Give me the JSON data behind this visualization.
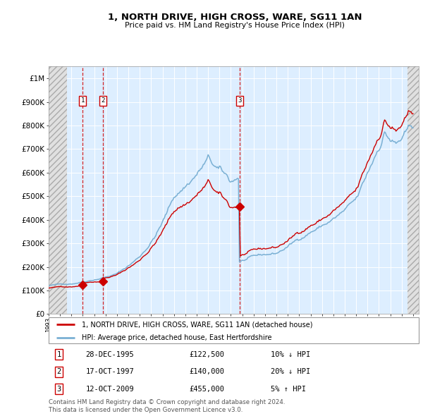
{
  "title": "1, NORTH DRIVE, HIGH CROSS, WARE, SG11 1AN",
  "subtitle": "Price paid vs. HM Land Registry's House Price Index (HPI)",
  "legend_line1": "1, NORTH DRIVE, HIGH CROSS, WARE, SG11 1AN (detached house)",
  "legend_line2": "HPI: Average price, detached house, East Hertfordshire",
  "transactions": [
    {
      "num": 1,
      "date": "28-DEC-1995",
      "price": 122500,
      "pct": "10%",
      "dir": "↓",
      "year": 1995.99
    },
    {
      "num": 2,
      "date": "17-OCT-1997",
      "price": 140000,
      "pct": "20%",
      "dir": "↓",
      "year": 1997.79
    },
    {
      "num": 3,
      "date": "12-OCT-2009",
      "price": 455000,
      "pct": "5%",
      "dir": "↑",
      "year": 2009.78
    }
  ],
  "footer": "Contains HM Land Registry data © Crown copyright and database right 2024.\nThis data is licensed under the Open Government Licence v3.0.",
  "ylim": [
    0,
    1050000
  ],
  "yticks": [
    0,
    100000,
    200000,
    300000,
    400000,
    500000,
    600000,
    700000,
    800000,
    900000,
    1000000
  ],
  "ytick_labels": [
    "£0",
    "£100K",
    "£200K",
    "£300K",
    "£400K",
    "£500K",
    "£600K",
    "£700K",
    "£800K",
    "£900K",
    "£1M"
  ],
  "xlim_start": 1993.0,
  "xlim_end": 2025.5,
  "hpi_color": "#7ab0d4",
  "price_color": "#cc0000",
  "bg_color": "#ddeeff",
  "grid_color": "#ffffff",
  "dashed_vline_color": "#cc0000",
  "hatch_bg": "#e8e8e8"
}
